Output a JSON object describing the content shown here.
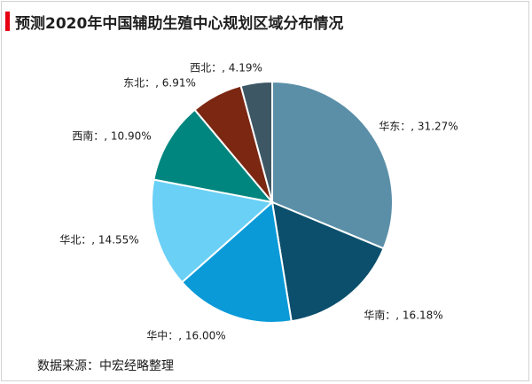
{
  "header": {
    "title": "预测2020年中国辅助生殖中心规划区域分布情况"
  },
  "footer": {
    "source": "数据来源：中宏经略整理"
  },
  "colors": {
    "accent": "#e60012"
  },
  "chart_data": {
    "type": "pie",
    "start_angle": "12 o'clock",
    "direction": "clockwise",
    "legend": "none",
    "slices": [
      {
        "category": "华东",
        "value": 31.27,
        "label": "华东：, 31.27%",
        "color": "#5b8fa8"
      },
      {
        "category": "华南",
        "value": 16.18,
        "label": "华南：, 16.18%",
        "color": "#0b4f6c"
      },
      {
        "category": "华中",
        "value": 16.0,
        "label": "华中：, 16.00%",
        "color": "#0a9ad8"
      },
      {
        "category": "华北",
        "value": 14.55,
        "label": "华北：, 14.55%",
        "color": "#6ad0f5"
      },
      {
        "category": "西南",
        "value": 10.9,
        "label": "西南：, 10.90%",
        "color": "#00867f"
      },
      {
        "category": "东北",
        "value": 6.91,
        "label": "东北：, 6.91%",
        "color": "#7b2712"
      },
      {
        "category": "西北",
        "value": 4.19,
        "label": "西北：, 4.19%",
        "color": "#3d5765"
      }
    ]
  }
}
